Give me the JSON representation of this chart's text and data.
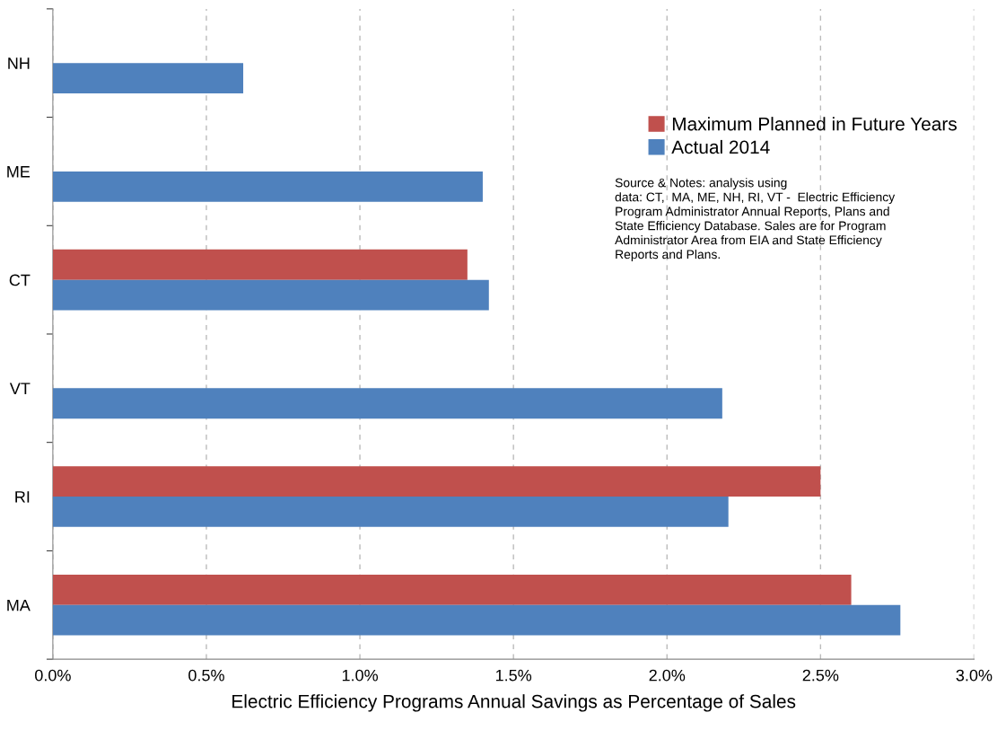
{
  "chart_data": {
    "type": "bar",
    "orientation": "horizontal",
    "xlabel": "Electric Efficiency Programs Annual Savings as Percentage of Sales",
    "categories": [
      "NH",
      "ME",
      "CT",
      "VT",
      "RI",
      "MA"
    ],
    "series": [
      {
        "name": "Maximum Planned in Future Years",
        "color": "#c0504d",
        "values": [
          null,
          null,
          1.35,
          null,
          2.5,
          2.6
        ]
      },
      {
        "name": "Actual 2014",
        "color": "#4f81bd",
        "values": [
          0.62,
          1.4,
          1.42,
          2.18,
          2.2,
          2.76
        ]
      }
    ],
    "xlim": [
      0,
      3.0
    ],
    "xticks": [
      {
        "value": 0,
        "label": "0.0%"
      },
      {
        "value": 0.5,
        "label": "0.5%"
      },
      {
        "value": 1.0,
        "label": "1.0%"
      },
      {
        "value": 1.5,
        "label": "1.5%"
      },
      {
        "value": 2.0,
        "label": "2.0%"
      },
      {
        "value": 2.5,
        "label": "2.5%"
      },
      {
        "value": 3.0,
        "label": "3.0%"
      }
    ],
    "grid": "x",
    "legend": "top right",
    "annotations": [
      "Source & Notes: analysis using\ndata: CT,  MA, ME, NH, RI, VT -  Electric Efficiency\nProgram Administrator Annual Reports, Plans and\nState Efficiency Database. Sales are for Program\nAdministrator Area from EIA and State Efficiency\nReports and Plans."
    ]
  }
}
